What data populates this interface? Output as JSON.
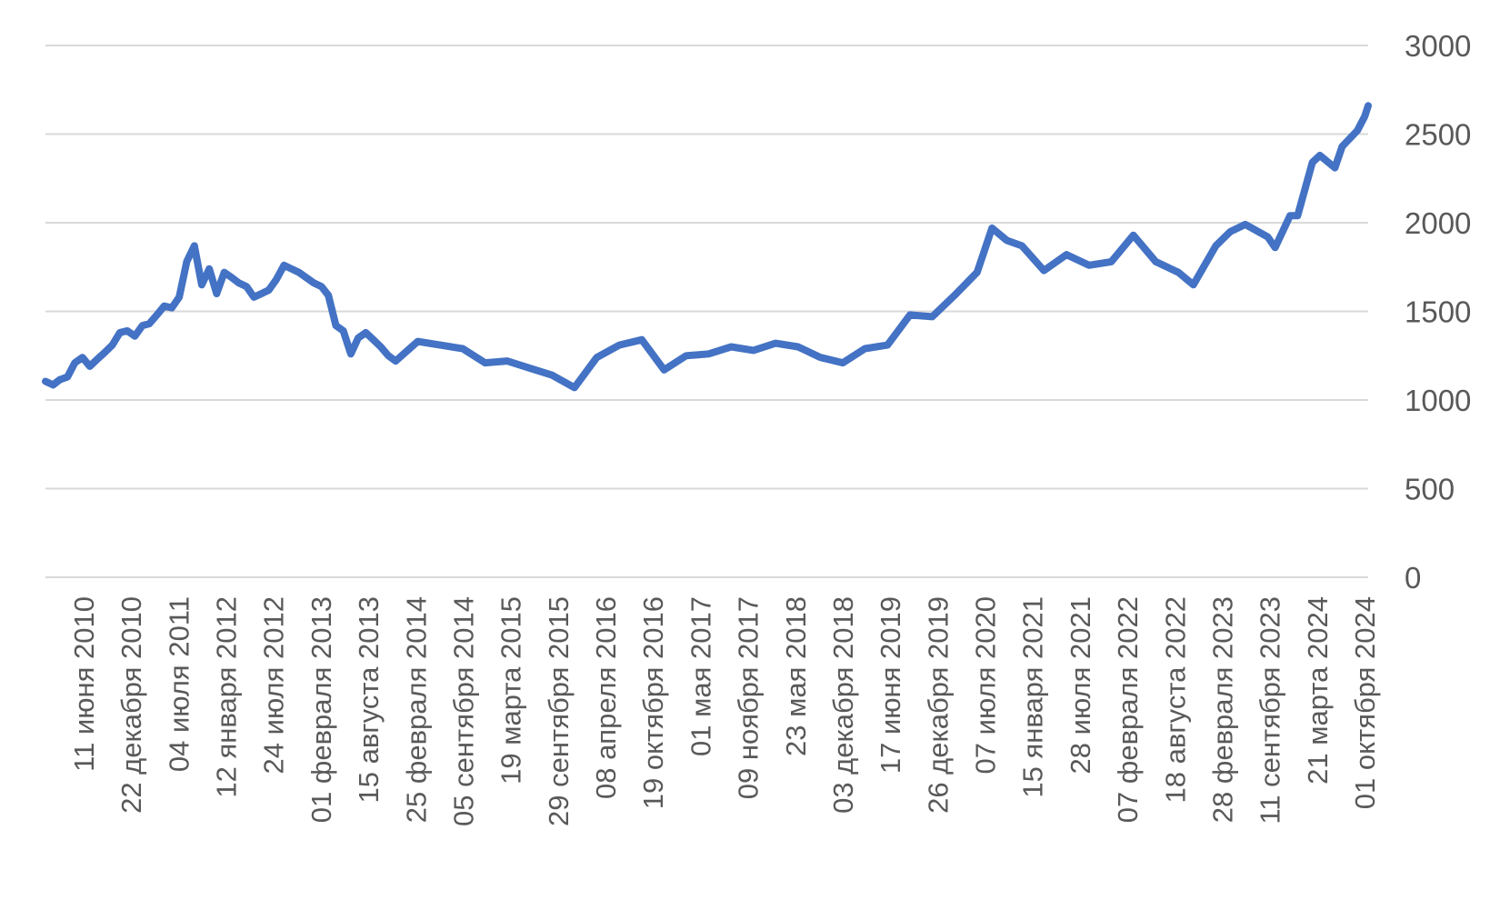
{
  "chart_data": {
    "type": "line",
    "title": "",
    "xlabel": "",
    "ylabel": "",
    "ylim": [
      0,
      3000
    ],
    "y_ticks": [
      0,
      500,
      1000,
      1500,
      2000,
      2500,
      3000
    ],
    "y_axis_side": "right",
    "grid": "horizontal",
    "legend": "none",
    "colors": {
      "series": "#4472C4",
      "grid": "#d9d9d9",
      "text": "#595959"
    },
    "x_tick_labels": [
      "11 июня 2010",
      "22 декабря 2010",
      "04 июля 2011",
      "12 января 2012",
      "24 июля 2012",
      "01 февраля 2013",
      "15 августа 2013",
      "25 февраля 2014",
      "05 сентября 2014",
      "19 марта 2015",
      "29 сентября 2015",
      "08 апреля 2016",
      "19 октября 2016",
      "01 мая 2017",
      "09 ноября 2017",
      "23 мая 2018",
      "03 декабря 2018",
      "17 июня 2019",
      "26 декабря 2019",
      "07 июля 2020",
      "15 января 2021",
      "28 июля 2021",
      "07 февраля 2022",
      "18 августа 2022",
      "28 февраля 2023",
      "11 сентября 2023",
      "21 марта 2024",
      "01 октября 2024"
    ],
    "x_range": [
      "2010-01-01",
      "2024-10-15"
    ],
    "series": [
      {
        "x": [
          "2010-01-01",
          "2010-02-01",
          "2010-03-01",
          "2010-04-01",
          "2010-05-01",
          "2010-06-01",
          "2010-07-01",
          "2010-08-01",
          "2010-09-01",
          "2010-10-01",
          "2010-11-01",
          "2010-12-01",
          "2011-01-01",
          "2011-02-01",
          "2011-03-01",
          "2011-04-01",
          "2011-05-01",
          "2011-06-01",
          "2011-07-01",
          "2011-08-01",
          "2011-09-01",
          "2011-10-01",
          "2011-11-01",
          "2011-12-01",
          "2012-01-01",
          "2012-02-01",
          "2012-03-01",
          "2012-04-01",
          "2012-05-01",
          "2012-06-01",
          "2012-07-01",
          "2012-08-01",
          "2012-09-01",
          "2012-10-01",
          "2012-11-01",
          "2012-12-01",
          "2013-01-01",
          "2013-02-01",
          "2013-03-01",
          "2013-04-01",
          "2013-05-01",
          "2013-06-01",
          "2013-07-01",
          "2013-08-01",
          "2013-09-01",
          "2013-10-01",
          "2013-11-01",
          "2013-12-01",
          "2014-03-01",
          "2014-06-01",
          "2014-09-01",
          "2014-12-01",
          "2015-03-01",
          "2015-06-01",
          "2015-09-01",
          "2015-12-01",
          "2016-03-01",
          "2016-06-01",
          "2016-09-01",
          "2016-12-01",
          "2017-03-01",
          "2017-06-01",
          "2017-09-01",
          "2017-12-01",
          "2018-03-01",
          "2018-06-01",
          "2018-09-01",
          "2018-12-01",
          "2019-03-01",
          "2019-06-01",
          "2019-09-01",
          "2019-12-01",
          "2020-03-01",
          "2020-06-01",
          "2020-08-01",
          "2020-10-01",
          "2020-12-01",
          "2021-03-01",
          "2021-06-01",
          "2021-09-01",
          "2021-12-01",
          "2022-03-01",
          "2022-06-01",
          "2022-09-01",
          "2022-11-01",
          "2023-02-01",
          "2023-04-01",
          "2023-06-01",
          "2023-09-01",
          "2023-10-01",
          "2023-12-01",
          "2024-01-01",
          "2024-03-01",
          "2024-04-01",
          "2024-06-01",
          "2024-07-01",
          "2024-09-01",
          "2024-10-01",
          "2024-10-15"
        ],
        "values": [
          1105,
          1085,
          1115,
          1130,
          1210,
          1240,
          1190,
          1230,
          1270,
          1310,
          1380,
          1390,
          1360,
          1420,
          1430,
          1480,
          1530,
          1520,
          1580,
          1780,
          1870,
          1650,
          1740,
          1600,
          1720,
          1690,
          1660,
          1640,
          1580,
          1600,
          1620,
          1680,
          1760,
          1740,
          1720,
          1690,
          1660,
          1640,
          1590,
          1420,
          1390,
          1260,
          1350,
          1380,
          1340,
          1300,
          1250,
          1220,
          1330,
          1310,
          1290,
          1210,
          1220,
          1180,
          1140,
          1070,
          1240,
          1310,
          1340,
          1170,
          1250,
          1260,
          1300,
          1280,
          1320,
          1300,
          1240,
          1210,
          1290,
          1310,
          1480,
          1470,
          1590,
          1720,
          1970,
          1900,
          1870,
          1730,
          1820,
          1760,
          1780,
          1930,
          1780,
          1720,
          1650,
          1870,
          1950,
          1990,
          1920,
          1860,
          2040,
          2040,
          2340,
          2380,
          2310,
          2430,
          2520,
          2600,
          2660
        ]
      }
    ]
  }
}
